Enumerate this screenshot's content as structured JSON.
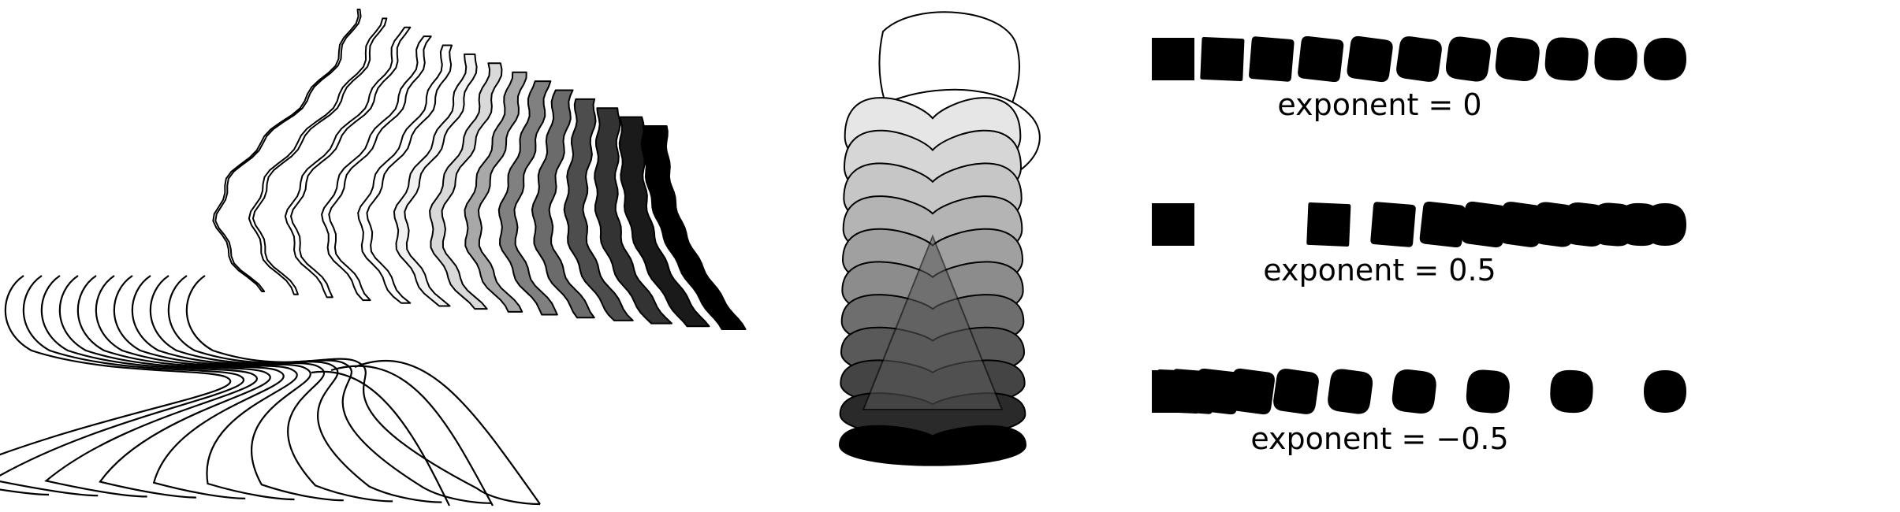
{
  "panels": {
    "wave_curves": {
      "curve_count": 11,
      "stroke": "#000000"
    },
    "wavy_ribbons": {
      "ribbon_count": 14,
      "fills": [
        "#ffffff",
        "#ffffff",
        "#ffffff",
        "#ffffff",
        "#ffffff",
        "#f2f2f2",
        "#d9d9d9",
        "#a8a8a8",
        "#808080",
        "#6b6b6b",
        "#4d4d4d",
        "#333333",
        "#1a1a1a",
        "#000000"
      ]
    },
    "stacked_loops": {
      "loop_fills": [
        "#ffffff",
        "#ffffff",
        "#e6e6e6",
        "#d6d6d6",
        "#c6c6c6",
        "#b4b4b4",
        "#a0a0a0",
        "#8c8c8c",
        "#6e6e6e",
        "#595959",
        "#444444",
        "#2a2a2a",
        "#000000"
      ]
    },
    "morph_rows": [
      {
        "label": "exponent = 0",
        "exponent": 0,
        "shape_count": 11
      },
      {
        "label": "exponent = 0.5",
        "exponent": 0.5,
        "shape_count": 11
      },
      {
        "label": "exponent = −0.5",
        "exponent": -0.5,
        "shape_count": 11
      }
    ],
    "shape_color": "#000000"
  }
}
